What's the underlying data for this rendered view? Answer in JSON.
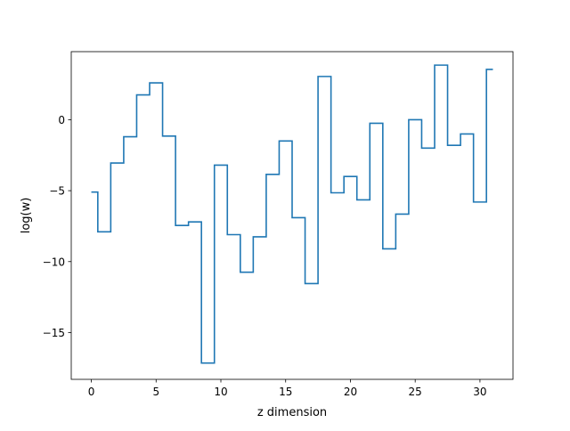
{
  "chart_data": {
    "type": "line",
    "drawstyle": "steps-mid",
    "title": "",
    "xlabel": "z dimension",
    "ylabel": "log(w)",
    "xlim": [
      -1.55,
      32.55
    ],
    "ylim": [
      -18.3,
      4.8
    ],
    "xticks": [
      0,
      5,
      10,
      15,
      20,
      25,
      30
    ],
    "xtick_labels": [
      "0",
      "5",
      "10",
      "15",
      "20",
      "25",
      "30"
    ],
    "yticks": [
      -15,
      -10,
      -5,
      0
    ],
    "ytick_labels": [
      "−15",
      "−10",
      "−5",
      "0"
    ],
    "grid": false,
    "series_color": "#1f77b4",
    "x": [
      0,
      1,
      2,
      3,
      4,
      5,
      6,
      7,
      8,
      9,
      10,
      11,
      12,
      13,
      14,
      15,
      16,
      17,
      18,
      19,
      20,
      21,
      22,
      23,
      24,
      25,
      26,
      27,
      28,
      29,
      30,
      31
    ],
    "values": [
      -5.1,
      -7.9,
      -3.05,
      -1.2,
      1.75,
      2.6,
      -1.15,
      -7.45,
      -7.2,
      -17.15,
      -3.2,
      -8.1,
      -10.75,
      -8.25,
      -3.85,
      -1.5,
      -6.9,
      -11.55,
      3.05,
      -5.15,
      -4.0,
      -5.65,
      -0.25,
      -9.1,
      -6.65,
      0.0,
      -2.0,
      3.85,
      -1.8,
      -1.0,
      -5.8,
      3.55
    ]
  }
}
